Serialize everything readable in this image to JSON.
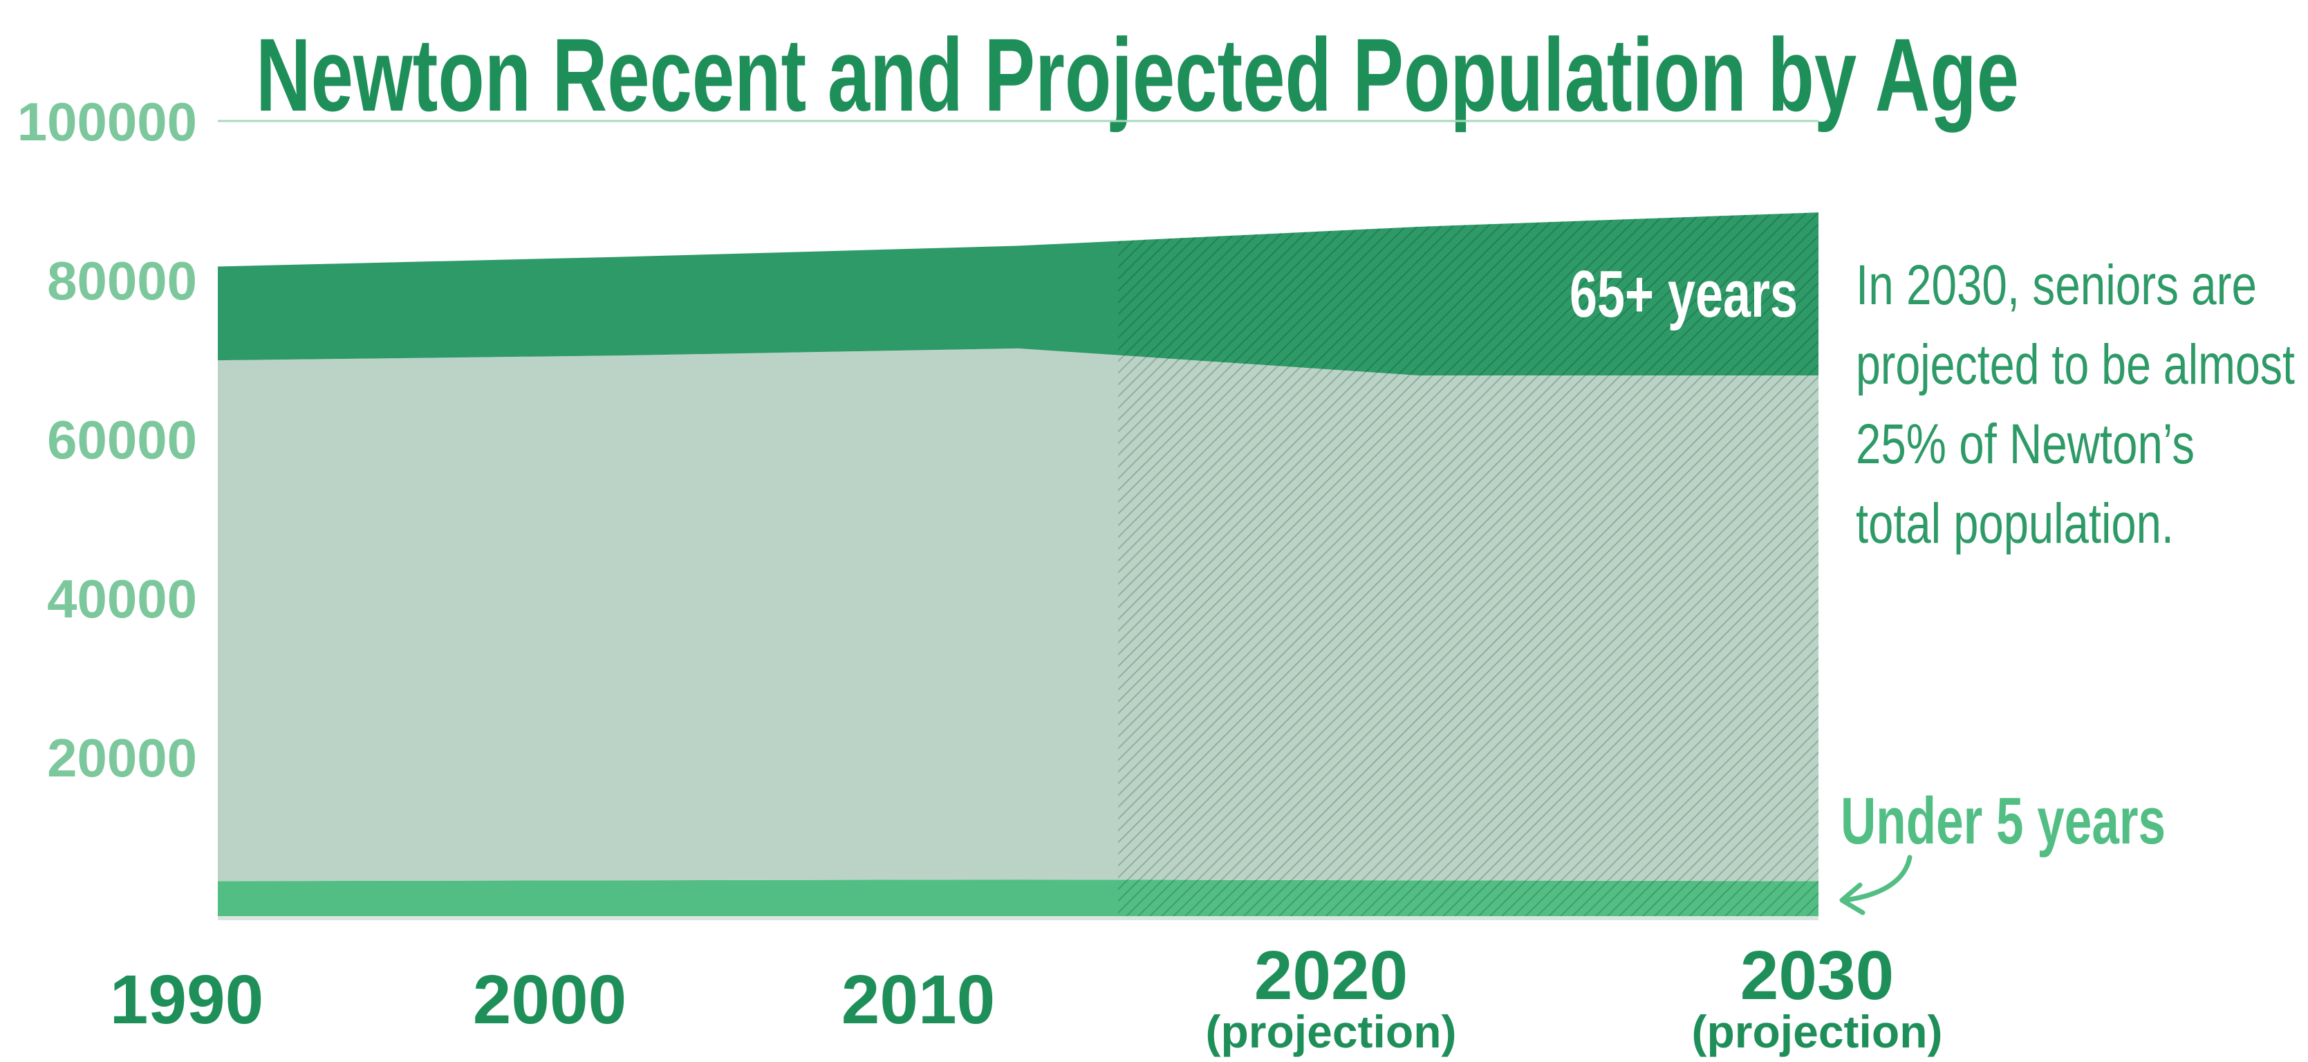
{
  "chart_data": {
    "type": "area",
    "title": "Newton Recent and Projected Population by Age",
    "x": [
      1990,
      2000,
      2010,
      2020,
      2030
    ],
    "x_tick_labels": [
      {
        "main": "1990",
        "sub": ""
      },
      {
        "main": "2000",
        "sub": ""
      },
      {
        "main": "2010",
        "sub": ""
      },
      {
        "main": "2020",
        "sub": "(projection)"
      },
      {
        "main": "2030",
        "sub": "(projection)"
      }
    ],
    "ylim": [
      0,
      100000
    ],
    "y_ticks": [
      "100000",
      "80000",
      "60000",
      "40000",
      "20000"
    ],
    "y_tick_values": [
      100000,
      80000,
      60000,
      40000,
      20000
    ],
    "grid": true,
    "projection_start_x": 2012.5,
    "series": [
      {
        "key": "under5",
        "name": "Under 5 years",
        "values": [
          4400,
          4500,
          4600,
          4500,
          4400
        ],
        "color": "#52be84"
      },
      {
        "key": "middle",
        "name": "",
        "values": [
          65500,
          66000,
          66800,
          63500,
          63600
        ],
        "color": "#bad3c6"
      },
      {
        "key": "seniors",
        "name": "65+ years",
        "values": [
          11800,
          12400,
          12900,
          18700,
          20500
        ],
        "color": "#2e9a67"
      }
    ],
    "annotation": "In 2030, seniors are projected to be almost 25% of Newton's total population.",
    "annotation_lines": [
      "In 2030, seniors are",
      "projected to be almost",
      "25% of Newton’s",
      "total population."
    ]
  },
  "colors": {
    "title": "#1f8f5a",
    "ytick": "#7cc79c",
    "xtick": "#1f8f5a",
    "grid": "#a9d9bf",
    "annotation": "#2e9a67",
    "under5_label": "#52be84",
    "seniors_label": "#ffffff"
  }
}
